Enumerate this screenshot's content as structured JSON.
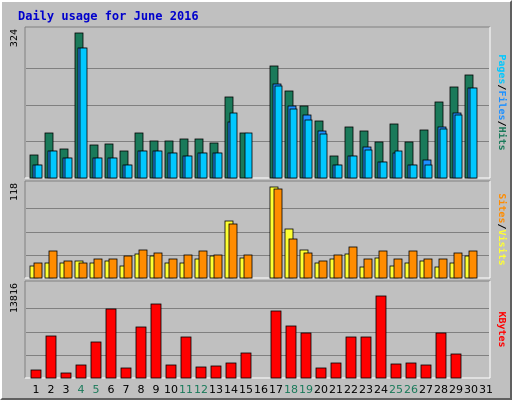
{
  "chart_data": {
    "type": "bar",
    "title": "Daily usage for June 2016",
    "categories": [
      "1",
      "2",
      "3",
      "4",
      "5",
      "6",
      "7",
      "8",
      "9",
      "10",
      "11",
      "12",
      "13",
      "14",
      "15",
      "16",
      "17",
      "18",
      "19",
      "20",
      "21",
      "22",
      "23",
      "24",
      "25",
      "26",
      "27",
      "28",
      "29",
      "30",
      "31"
    ],
    "weekend_days": [
      4,
      5,
      11,
      12,
      18,
      19,
      25,
      26
    ],
    "colors": {
      "hits": "#1a7a5a",
      "files": "#1e90ff",
      "pages": "#00c8ff",
      "visits": "#ffff33",
      "sites": "#ff8c00",
      "kbytes": "#ff0000",
      "weekday_label": "#000000",
      "weekend_label": "#1a7a5a"
    },
    "panels": [
      {
        "name": "hits-files-pages",
        "max_label": "324",
        "ymax": 324,
        "series": [
          {
            "name": "Hits",
            "values": [
              52,
              100,
              65,
              324,
              73,
              75,
              60,
              100,
              83,
              83,
              88,
              87,
              79,
              180,
              100,
              0,
              250,
              195,
              160,
              128,
              50,
              115,
              105,
              80,
              120,
              80,
              108,
              170,
              204,
              230,
              0
            ]
          },
          {
            "name": "Files",
            "values": [
              30,
              60,
              45,
              290,
              45,
              45,
              30,
              60,
              60,
              55,
              50,
              55,
              55,
              125,
              0,
              0,
              210,
              160,
              140,
              105,
              30,
              50,
              70,
              35,
              55,
              28,
              40,
              115,
              145,
              200,
              0
            ]
          },
          {
            "name": "Pages",
            "values": [
              30,
              60,
              45,
              290,
              45,
              45,
              30,
              60,
              60,
              55,
              50,
              55,
              55,
              145,
              100,
              0,
              205,
              155,
              130,
              98,
              30,
              50,
              63,
              35,
              60,
              28,
              30,
              110,
              140,
              200,
              0
            ]
          }
        ]
      },
      {
        "name": "visits-sites",
        "max_label": "118",
        "ymax": 118,
        "series": [
          {
            "name": "Visits",
            "values": [
              15,
              20,
              20,
              22,
              20,
              22,
              15,
              31,
              28,
              20,
              20,
              24,
              28,
              74,
              26,
              0,
              118,
              63,
              36,
              20,
              24,
              31,
              14,
              26,
              16,
              20,
              22,
              14,
              20,
              29,
              0
            ]
          },
          {
            "name": "Sites",
            "values": [
              20,
              35,
              22,
              20,
              24,
              24,
              28,
              36,
              32,
              25,
              30,
              35,
              30,
              70,
              30,
              0,
              115,
              50,
              32,
              22,
              30,
              40,
              25,
              35,
              25,
              35,
              25,
              25,
              33,
              35,
              0
            ]
          }
        ]
      },
      {
        "name": "kbytes",
        "max_label": "13816",
        "ymax": 13816,
        "series": [
          {
            "name": "KBytes",
            "values": [
              1200,
              6400,
              700,
              1900,
              5400,
              10500,
              1500,
              7800,
              11300,
              1900,
              6300,
              1700,
              1800,
              2300,
              3800,
              0,
              10200,
              7900,
              6900,
              1500,
              2300,
              6300,
              6300,
              12500,
              2100,
              2300,
              1900,
              6900,
              3600,
              0,
              0
            ]
          }
        ]
      }
    ],
    "legend_right": [
      {
        "panel": "hits-files-pages",
        "parts": [
          "Pages",
          "/",
          "Files",
          "/",
          "Hits"
        ],
        "colors": [
          "#00c8ff",
          "#000000",
          "#1e90ff",
          "#000000",
          "#1a7a5a"
        ]
      },
      {
        "panel": "visits-sites",
        "parts": [
          "Sites",
          "/",
          "Visits"
        ],
        "colors": [
          "#ff8c00",
          "#000000",
          "#ffff33"
        ]
      },
      {
        "panel": "kbytes",
        "parts": [
          "KBytes"
        ],
        "colors": [
          "#ff0000"
        ]
      }
    ]
  }
}
